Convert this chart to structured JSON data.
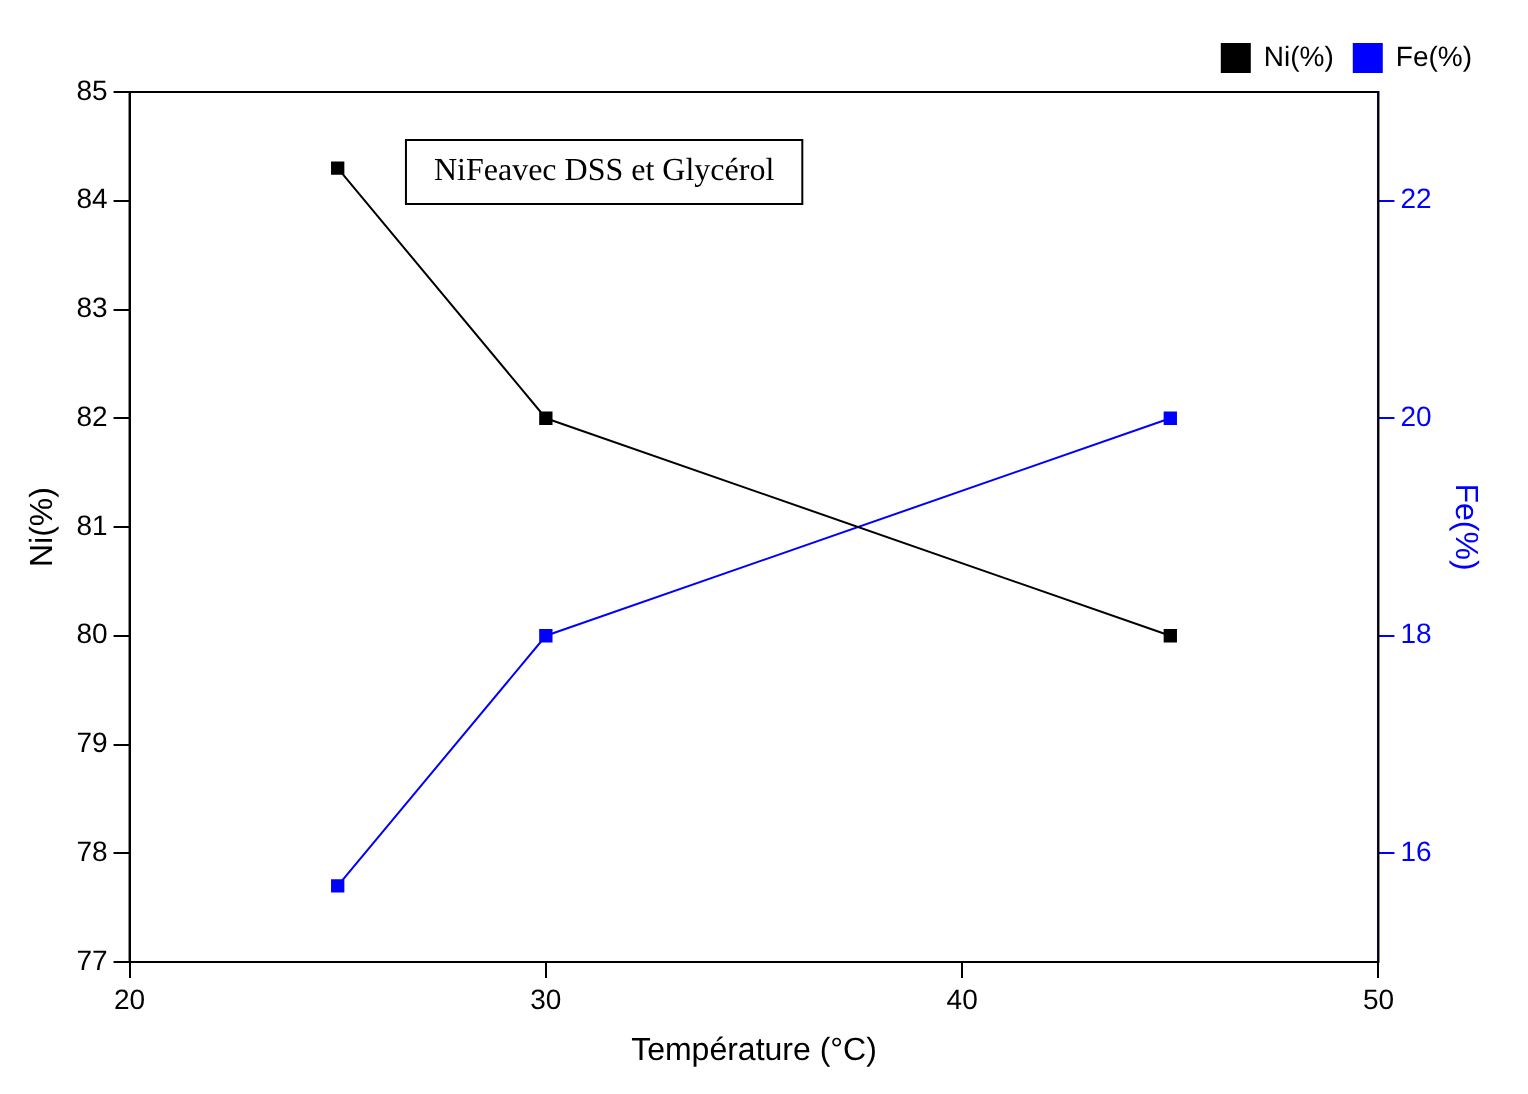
{
  "chart_data": {
    "type": "line",
    "xlabel": "Température (°C)",
    "ylabel": "Ni(%)",
    "y2label": "Fe(%)",
    "annotations": [
      "NiFeavec DSS et Glycérol"
    ],
    "x": [
      25,
      30,
      45
    ],
    "series": [
      {
        "name": "Ni(%)",
        "color": "#000000",
        "values": [
          84.3,
          82.0,
          80.0
        ]
      },
      {
        "name": "Fe(%)",
        "color": "#0000ff",
        "values": [
          15.7,
          18.0,
          20.0
        ],
        "axis": "y2"
      }
    ],
    "xlim": [
      20,
      50
    ],
    "xticks": [
      20,
      30,
      40,
      50
    ],
    "ylim": [
      77,
      85
    ],
    "yticks": [
      77,
      78,
      79,
      80,
      81,
      82,
      83,
      84,
      85
    ],
    "y2lim": [
      15,
      23
    ],
    "y2ticks": [
      16,
      18,
      20,
      22
    ],
    "grid": false,
    "legend": "top right",
    "marker": "square",
    "line_style": "solid"
  }
}
